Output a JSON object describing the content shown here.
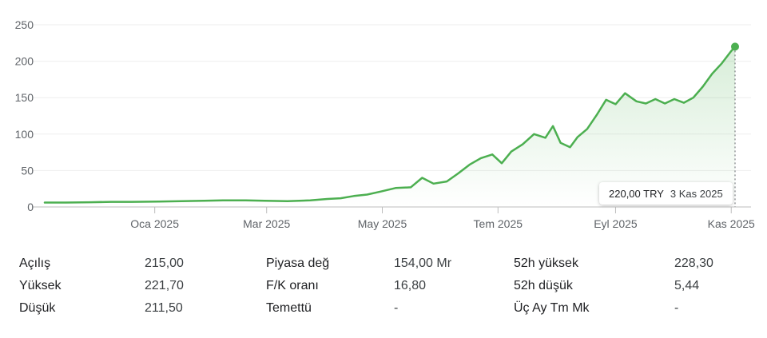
{
  "chart_data": {
    "type": "area",
    "currency": "TRY",
    "ylim": [
      0,
      250
    ],
    "yticks": [
      0,
      50,
      100,
      150,
      200,
      250
    ],
    "xticks": [
      "Oca 2025",
      "Mar 2025",
      "May 2025",
      "Tem 2025",
      "Eyl 2025",
      "Kas 2025"
    ],
    "xtick_dates": [
      "2025-01-01",
      "2025-03-01",
      "2025-05-01",
      "2025-07-01",
      "2025-09-01",
      "2025-11-01"
    ],
    "grid": true,
    "series": [
      {
        "color": "#4caf50",
        "x": [
          "2024-11-04",
          "2024-11-15",
          "2024-11-28",
          "2024-12-09",
          "2024-12-20",
          "2025-01-03",
          "2025-01-15",
          "2025-01-27",
          "2025-02-06",
          "2025-02-18",
          "2025-02-28",
          "2025-03-12",
          "2025-03-24",
          "2025-04-02",
          "2025-04-09",
          "2025-04-16",
          "2025-04-23",
          "2025-04-30",
          "2025-05-08",
          "2025-05-16",
          "2025-05-22",
          "2025-05-28",
          "2025-06-04",
          "2025-06-10",
          "2025-06-16",
          "2025-06-22",
          "2025-06-28",
          "2025-07-03",
          "2025-07-08",
          "2025-07-14",
          "2025-07-20",
          "2025-07-26",
          "2025-07-30",
          "2025-08-03",
          "2025-08-08",
          "2025-08-12",
          "2025-08-17",
          "2025-08-22",
          "2025-08-27",
          "2025-09-01",
          "2025-09-06",
          "2025-09-12",
          "2025-09-17",
          "2025-09-22",
          "2025-09-27",
          "2025-10-02",
          "2025-10-07",
          "2025-10-12",
          "2025-10-17",
          "2025-10-22",
          "2025-10-27",
          "2025-11-01",
          "2025-11-03"
        ],
        "values": [
          6,
          6,
          6.5,
          7,
          7,
          7.5,
          8,
          8.5,
          9,
          9,
          8.5,
          8,
          9,
          11,
          12,
          15,
          17,
          21,
          26,
          27,
          40,
          32,
          35,
          46,
          58,
          67,
          72,
          60,
          76,
          86,
          100,
          95,
          111,
          88,
          82,
          96,
          107,
          126,
          147,
          141,
          156,
          145,
          142,
          148,
          142,
          148,
          143,
          150,
          165,
          183,
          197,
          214,
          220
        ]
      }
    ],
    "tooltip": {
      "price": "220,00 TRY",
      "date": "3 Kas 2025"
    }
  },
  "stats": [
    [
      {
        "label": "Açılış",
        "value": "215,00"
      },
      {
        "label": "Piyasa değ",
        "value": "154,00 Mr"
      },
      {
        "label": "52h yüksek",
        "value": "228,30"
      }
    ],
    [
      {
        "label": "Yüksek",
        "value": "221,70"
      },
      {
        "label": "F/K oranı",
        "value": "16,80"
      },
      {
        "label": "52h düşük",
        "value": "5,44"
      }
    ],
    [
      {
        "label": "Düşük",
        "value": "211,50"
      },
      {
        "label": "Temettü",
        "value": "-"
      },
      {
        "label": "Üç Ay Tm Mk",
        "value": "-"
      }
    ]
  ]
}
